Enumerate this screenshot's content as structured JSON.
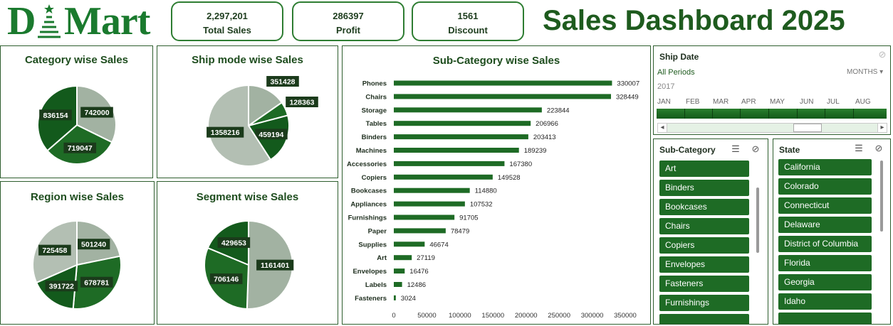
{
  "logo": {
    "text_d": "D",
    "text_mart": "Mart",
    "color": "#1a7a2e"
  },
  "kpis": [
    {
      "value": "2,297,201",
      "label": "Total Sales"
    },
    {
      "value": "286397",
      "label": "Profit"
    },
    {
      "value": "1561",
      "label": "Discount"
    }
  ],
  "title": "Sales Dashboard 2025",
  "panels": {
    "category": {
      "title": "Category wise Sales"
    },
    "shipmode": {
      "title": "Ship mode wise Sales"
    },
    "region": {
      "title": "Region wise Sales"
    },
    "segment": {
      "title": "Segment wise Sales"
    },
    "subcategory": {
      "title": "Sub-Category wise Sales"
    }
  },
  "chart_data": [
    {
      "type": "pie",
      "title": "Category wise Sales",
      "values": [
        742000,
        719047,
        836154
      ],
      "colors": [
        "#a2b2a2",
        "#1e6b25",
        "#135a1c"
      ]
    },
    {
      "type": "pie",
      "title": "Ship mode wise Sales",
      "values": [
        351428,
        128363,
        459194,
        1358216
      ],
      "colors": [
        "#a2b2a2",
        "#1e6b25",
        "#135a1c",
        "#b3bfb3"
      ]
    },
    {
      "type": "pie",
      "title": "Region wise Sales",
      "values": [
        501240,
        678781,
        391722,
        725458
      ],
      "colors": [
        "#a2b2a2",
        "#1e6b25",
        "#135a1c",
        "#b3bfb3"
      ]
    },
    {
      "type": "pie",
      "title": "Segment wise Sales",
      "values": [
        1161401,
        706146,
        429653
      ],
      "colors": [
        "#a2b2a2",
        "#1e6b25",
        "#135a1c"
      ]
    },
    {
      "type": "bar",
      "orientation": "horizontal",
      "title": "Sub-Category wise Sales",
      "categories": [
        "Phones",
        "Chairs",
        "Storage",
        "Tables",
        "Binders",
        "Machines",
        "Accessories",
        "Copiers",
        "Bookcases",
        "Appliances",
        "Furnishings",
        "Paper",
        "Supplies",
        "Art",
        "Envelopes",
        "Labels",
        "Fasteners"
      ],
      "values": [
        330007,
        328449,
        223844,
        206966,
        203413,
        189239,
        167380,
        149528,
        114880,
        107532,
        91705,
        78479,
        46674,
        27119,
        16476,
        12486,
        3024
      ],
      "xlim": [
        0,
        350000
      ],
      "xticks": [
        "0",
        "50000",
        "100000",
        "150000",
        "200000",
        "250000",
        "300000",
        "350000"
      ],
      "color": "#1e6b25"
    }
  ],
  "shipdate": {
    "title": "Ship Date",
    "period": "All Periods",
    "unit": "MONTHS",
    "year": "2017",
    "months": [
      "JAN",
      "FEB",
      "MAR",
      "APR",
      "MAY",
      "JUN",
      "JUL",
      "AUG"
    ]
  },
  "subcat_slicer": {
    "title": "Sub-Category",
    "items": [
      "Art",
      "Binders",
      "Bookcases",
      "Chairs",
      "Copiers",
      "Envelopes",
      "Fasteners",
      "Furnishings"
    ]
  },
  "state_slicer": {
    "title": "State",
    "items": [
      "California",
      "Colorado",
      "Connecticut",
      "Delaware",
      "District of Columbia",
      "Florida",
      "Georgia",
      "Idaho"
    ]
  },
  "icons": {
    "multiselect": "☰",
    "clear_filter": "⊘",
    "dropdown": "▾",
    "scroll_left": "◂",
    "scroll_right": "▸"
  }
}
